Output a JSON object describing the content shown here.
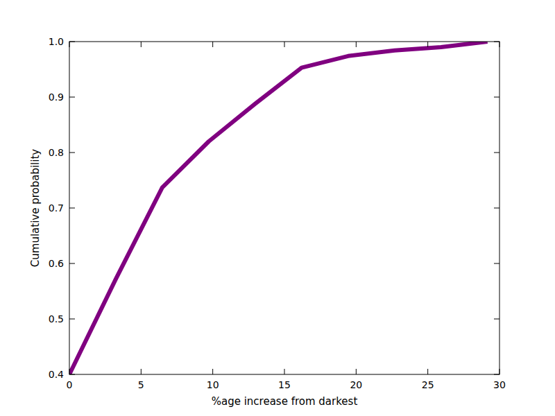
{
  "chart_data": {
    "type": "line",
    "x_label": "%age increase from darkest",
    "y_label": "Cumulative probability",
    "x": [
      0,
      3.24,
      6.48,
      9.72,
      12.96,
      16.2,
      19.44,
      22.68,
      25.92,
      29.16
    ],
    "values": [
      0.4,
      0.572,
      0.737,
      0.82,
      0.888,
      0.953,
      0.974,
      0.984,
      0.99,
      1.0
    ],
    "color": "#800080",
    "xlim": [
      0,
      30
    ],
    "xticks": [
      0,
      5,
      10,
      15,
      20,
      25,
      30
    ],
    "ylim": [
      0.4,
      1.0
    ],
    "yticks": [
      0.4,
      0.5,
      0.6,
      0.7,
      0.8,
      0.9,
      {
        "value": 1.0,
        "label": "1.0"
      }
    ],
    "grid": false
  }
}
